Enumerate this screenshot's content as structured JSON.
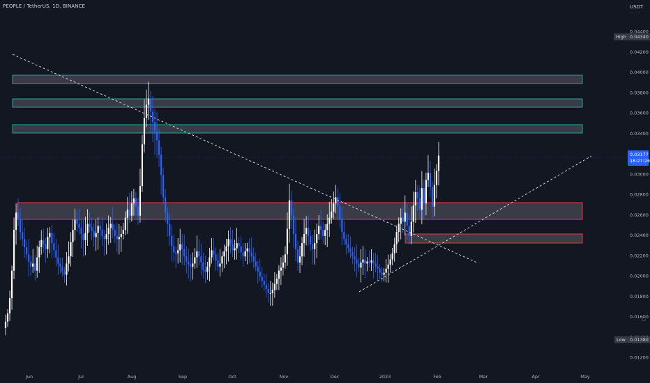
{
  "header": {
    "symbol": "PEOPLE / TetherUS, 1D, BINANCE"
  },
  "price_axis": {
    "unit": "USDT",
    "unit_sub": "······ ·····",
    "ticks": [
      "0.04400",
      "0.04200",
      "0.04000",
      "0.03800",
      "0.03600",
      "0.03400",
      "0.03200",
      "0.03000",
      "0.02800",
      "0.02600",
      "0.02400",
      "0.02200",
      "0.02000",
      "0.01800",
      "0.01600",
      "0.01400",
      "0.01200"
    ]
  },
  "markers": {
    "high_label": "High",
    "high_value": "0.04340",
    "low_label": "Low",
    "low_value": "0.01380",
    "last_price": "0.03177",
    "countdown": "18:27:26"
  },
  "colors": {
    "background": "#131722",
    "candle_up": "#ffffff",
    "candle_down": "#2962ff",
    "resistance_border": "#26a69a",
    "support_border": "#f23645",
    "zone_fill": "#4a4d57",
    "last_price": "#2962ff"
  },
  "chart_data": {
    "type": "candlestick",
    "title": "",
    "xlabel": "",
    "ylabel": "",
    "ylim": [
      0.0115,
      0.045
    ],
    "x_tick_labels": [
      "Jun",
      "Jul",
      "Aug",
      "Sep",
      "Oct",
      "Nov",
      "Dec",
      "2023",
      "Feb",
      "Mar",
      "Apr",
      "May"
    ],
    "grid": false,
    "series": [
      {
        "values": [
          0.0155,
          0.0163,
          0.0178,
          0.0205,
          0.0245,
          0.0262,
          0.0255,
          0.0243,
          0.0236,
          0.0228,
          0.0221,
          0.0214,
          0.0209,
          0.0212,
          0.0205,
          0.0218,
          0.0228,
          0.0235,
          0.0231,
          0.0226,
          0.0238,
          0.0242,
          0.0232,
          0.0225,
          0.0218,
          0.0212,
          0.0209,
          0.0204,
          0.0201,
          0.0212,
          0.0219,
          0.0233,
          0.0245,
          0.0255,
          0.0251,
          0.0247,
          0.0241,
          0.0235,
          0.0242,
          0.0251,
          0.0248,
          0.0244,
          0.0238,
          0.0242,
          0.0249,
          0.0245,
          0.0239,
          0.0236,
          0.0241,
          0.0247,
          0.0251,
          0.0245,
          0.0239,
          0.0236,
          0.0238,
          0.0241,
          0.0245,
          0.0257,
          0.0265,
          0.0259,
          0.0271,
          0.0276,
          0.0268,
          0.0259,
          0.0288,
          0.0329,
          0.0355,
          0.0368,
          0.0374,
          0.0361,
          0.0351,
          0.0342,
          0.0333,
          0.0319,
          0.0299,
          0.0277,
          0.0262,
          0.0251,
          0.0239,
          0.0229,
          0.0223,
          0.0222,
          0.0225,
          0.0231,
          0.0226,
          0.0219,
          0.0214,
          0.0211,
          0.0209,
          0.0212,
          0.0218,
          0.0224,
          0.0219,
          0.0213,
          0.0206,
          0.0204,
          0.0209,
          0.0218,
          0.0225,
          0.0221,
          0.0215,
          0.0209,
          0.0212,
          0.0219,
          0.0224,
          0.0229,
          0.0236,
          0.0231,
          0.0225,
          0.0227,
          0.0232,
          0.0229,
          0.0223,
          0.0219,
          0.0224,
          0.0227,
          0.0223,
          0.0219,
          0.0214,
          0.0209,
          0.0204,
          0.0199,
          0.0195,
          0.0191,
          0.0187,
          0.0183,
          0.0183,
          0.0186,
          0.0192,
          0.0197,
          0.0205,
          0.0208,
          0.0213,
          0.0221,
          0.0246,
          0.0274,
          0.0259,
          0.0241,
          0.0226,
          0.0213,
          0.0219,
          0.0232,
          0.0241,
          0.0247,
          0.0239,
          0.0231,
          0.0226,
          0.0232,
          0.0241,
          0.0249,
          0.0245,
          0.0239,
          0.0245,
          0.0251,
          0.0257,
          0.0263,
          0.0271,
          0.0277,
          0.0268,
          0.0255,
          0.0243,
          0.0236,
          0.0231,
          0.0227,
          0.0223,
          0.0219,
          0.0216,
          0.0212,
          0.0208,
          0.0213,
          0.0216,
          0.0212,
          0.0214,
          0.0213,
          0.0215,
          0.0212,
          0.0209,
          0.0207,
          0.0203,
          0.0201,
          0.0203,
          0.0207,
          0.0211,
          0.0216,
          0.0222,
          0.0231,
          0.0243,
          0.0251,
          0.0257,
          0.0253,
          0.0262,
          0.0249,
          0.0239,
          0.0253,
          0.0269,
          0.0282,
          0.0276,
          0.0265,
          0.0286,
          0.0271,
          0.0294,
          0.0301,
          0.0287,
          0.0268,
          0.0289,
          0.0303,
          0.0318
        ]
      }
    ]
  }
}
